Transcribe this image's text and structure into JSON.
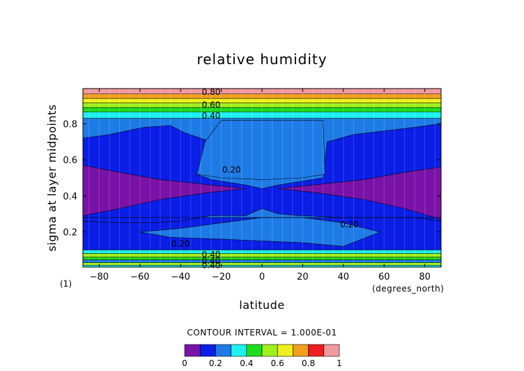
{
  "chart_data": {
    "type": "heatmap",
    "subtype": "filled-contour",
    "title": "relative humidity",
    "xlabel": "latitude",
    "ylabel": "sigma at layer midpoints",
    "x_units": "(degrees_north)",
    "panel_tag": "(1)",
    "xlim": [
      -88,
      88
    ],
    "ylim": [
      0.005,
      0.995
    ],
    "x_ticks": [
      -80,
      -60,
      -40,
      -20,
      0,
      20,
      40,
      60,
      80
    ],
    "x_tick_labels": [
      "−80",
      "−60",
      "−40",
      "−20",
      "0",
      "20",
      "40",
      "60",
      "80"
    ],
    "y_ticks": [
      0.2,
      0.4,
      0.6,
      0.8
    ],
    "y_tick_labels": [
      "0.2",
      "0.4",
      "0.6",
      "0.8"
    ],
    "contour_interval_text": "CONTOUR INTERVAL = 1.000E-01",
    "contour_labels": [
      {
        "text": "0.80",
        "lat": -25,
        "sigma": 0.975
      },
      {
        "text": "0.60",
        "lat": -25,
        "sigma": 0.905
      },
      {
        "text": "0.40",
        "lat": -25,
        "sigma": 0.845
      },
      {
        "text": "0.20",
        "lat": -15,
        "sigma": 0.545
      },
      {
        "text": "0.20",
        "lat": 43,
        "sigma": 0.24
      },
      {
        "text": "0.20",
        "lat": -40,
        "sigma": 0.135
      },
      {
        "text": "0.40",
        "lat": -25,
        "sigma": 0.075
      },
      {
        "text": "0.40",
        "lat": -25,
        "sigma": 0.04
      },
      {
        "text": "0.40",
        "lat": -25,
        "sigma": 0.015
      }
    ],
    "field": {
      "description": "relative humidity (fraction 0-1) by latitude and sigma level",
      "bands": [
        {
          "sigma": [
            0.965,
            0.995
          ],
          "rh": 0.92
        },
        {
          "sigma": [
            0.94,
            0.965
          ],
          "rh": 0.76
        },
        {
          "sigma": [
            0.915,
            0.94
          ],
          "rh": 0.66
        },
        {
          "sigma": [
            0.89,
            0.915
          ],
          "rh": 0.55
        },
        {
          "sigma": [
            0.865,
            0.89
          ],
          "rh": 0.45
        },
        {
          "sigma": [
            0.83,
            0.865
          ],
          "rh": 0.35
        },
        {
          "sigma": [
            0.28,
            0.83
          ],
          "rh": 0.25,
          "note": "broad 0.2-0.3 region with enclosed drier 0.1-0.2 and 0-0.1 cells"
        },
        {
          "sigma": [
            0.1,
            0.28
          ],
          "rh": 0.15
        },
        {
          "sigma": [
            0.08,
            0.1
          ],
          "rh": 0.35
        },
        {
          "sigma": [
            0.06,
            0.08
          ],
          "rh": 0.55
        },
        {
          "sigma": [
            0.045,
            0.06
          ],
          "rh": 0.45
        },
        {
          "sigma": [
            0.03,
            0.045
          ],
          "rh": 0.25
        },
        {
          "sigma": [
            0.015,
            0.03
          ],
          "rh": 0.5
        },
        {
          "sigma": [
            0.005,
            0.015
          ],
          "rh": 0.3
        }
      ]
    },
    "colorbar": {
      "levels": [
        0,
        0.1,
        0.2,
        0.3,
        0.4,
        0.5,
        0.6,
        0.7,
        0.8,
        0.9,
        1.0
      ],
      "tick_labels": [
        "0",
        "0.2",
        "0.4",
        "0.6",
        "0.8",
        "1"
      ],
      "tick_values": [
        0,
        0.2,
        0.4,
        0.6,
        0.8,
        1.0
      ],
      "colors": [
        "#7a12a8",
        "#0a1ee6",
        "#1e7be6",
        "#1ef0f0",
        "#1edd1e",
        "#a0f01e",
        "#f0f01e",
        "#f0a01e",
        "#f01e1e",
        "#f09aa0"
      ]
    },
    "grid": false
  }
}
